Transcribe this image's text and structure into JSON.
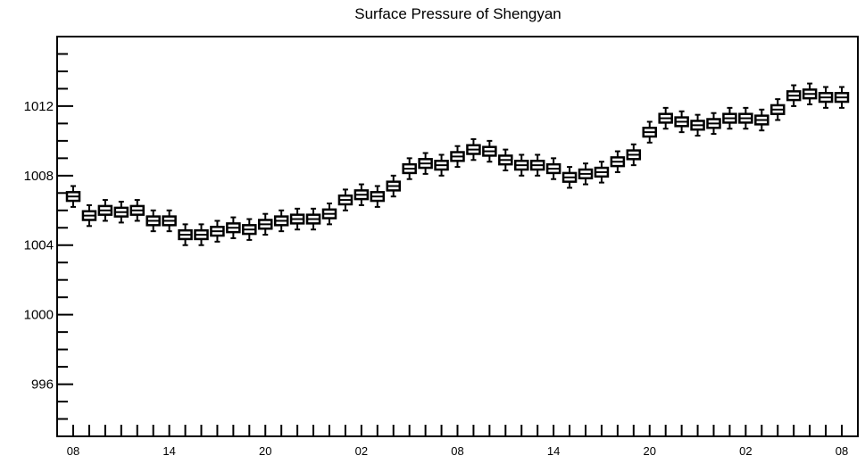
{
  "chart_data": {
    "type": "boxplot",
    "title": "Surface Pressure of Shengyan",
    "xlabel": "",
    "ylabel": "",
    "ylim": [
      993,
      1016
    ],
    "y_ticks": [
      996,
      1000,
      1004,
      1008,
      1012
    ],
    "y_tick_labels": [
      "996",
      "1000",
      "1004",
      "1008",
      "1012"
    ],
    "x_tick_labels": [
      "08",
      "14",
      "20",
      "02",
      "08",
      "14",
      "20",
      "02",
      "08"
    ],
    "x_tick_label_positions": [
      0,
      6,
      12,
      18,
      24,
      30,
      36,
      42,
      48
    ],
    "n_time_steps": 49,
    "grid": false,
    "x": [
      0,
      1,
      2,
      3,
      4,
      5,
      6,
      7,
      8,
      9,
      10,
      11,
      12,
      13,
      14,
      15,
      16,
      17,
      18,
      19,
      20,
      21,
      22,
      23,
      24,
      25,
      26,
      27,
      28,
      29,
      30,
      31,
      32,
      33,
      34,
      35,
      36,
      37,
      38,
      39,
      40,
      41,
      42,
      43,
      44,
      45,
      46,
      47,
      48
    ],
    "median": [
      1006.8,
      1005.7,
      1006.0,
      1005.9,
      1006.0,
      1005.4,
      1005.4,
      1004.6,
      1004.6,
      1004.8,
      1005.0,
      1004.9,
      1005.2,
      1005.4,
      1005.5,
      1005.5,
      1005.8,
      1006.6,
      1006.9,
      1006.8,
      1007.4,
      1008.4,
      1008.7,
      1008.6,
      1009.1,
      1009.5,
      1009.4,
      1008.9,
      1008.6,
      1008.6,
      1008.4,
      1007.9,
      1008.1,
      1008.2,
      1008.8,
      1009.2,
      1010.5,
      1011.3,
      1011.1,
      1010.9,
      1011.0,
      1011.3,
      1011.3,
      1011.2,
      1011.8,
      1012.6,
      1012.7,
      1012.5,
      1012.5
    ],
    "box_half_range": 0.25,
    "whisker_half_range": 0.6
  }
}
